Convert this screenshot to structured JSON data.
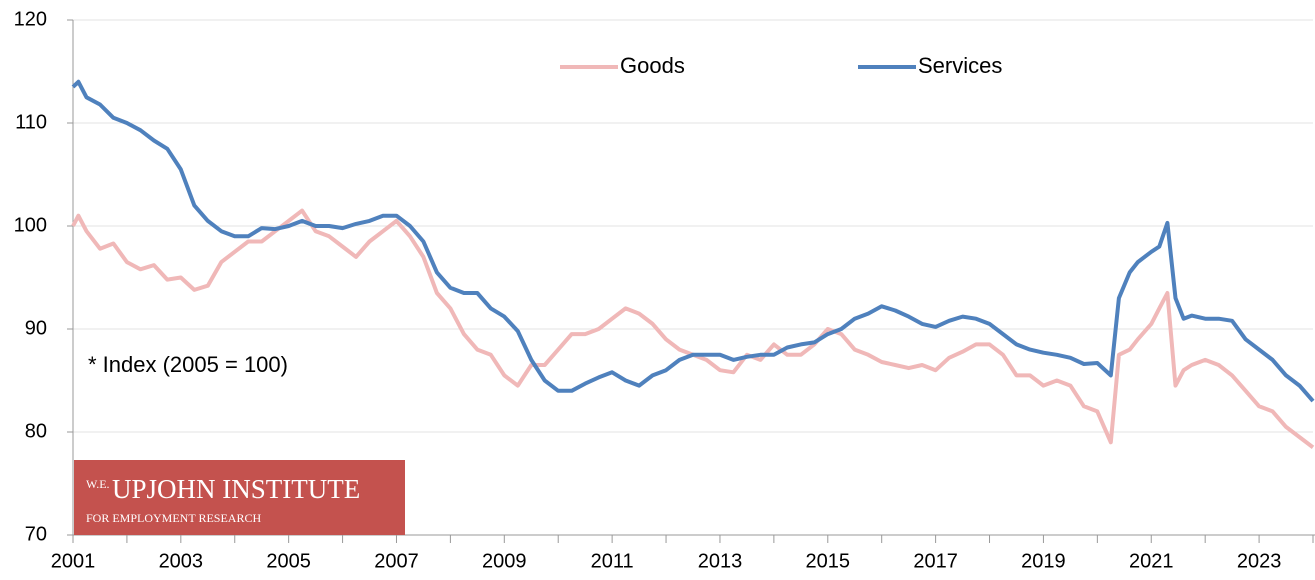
{
  "chart_data": {
    "type": "line",
    "annotation": "* Index (2005 = 100)",
    "logo": {
      "title": "UPJOHN INSTITUTE",
      "prefix": "W.E.",
      "subtitle": "FOR EMPLOYMENT RESEARCH"
    },
    "x": [
      2001.0,
      2001.1,
      2001.25,
      2001.5,
      2001.75,
      2002.0,
      2002.25,
      2002.5,
      2002.75,
      2003.0,
      2003.25,
      2003.5,
      2003.75,
      2004.0,
      2004.25,
      2004.5,
      2004.75,
      2005.0,
      2005.25,
      2005.5,
      2005.75,
      2006.0,
      2006.25,
      2006.5,
      2006.75,
      2007.0,
      2007.25,
      2007.5,
      2007.75,
      2008.0,
      2008.25,
      2008.5,
      2008.75,
      2009.0,
      2009.25,
      2009.5,
      2009.75,
      2010.0,
      2010.25,
      2010.5,
      2010.75,
      2011.0,
      2011.25,
      2011.5,
      2011.75,
      2012.0,
      2012.25,
      2012.5,
      2012.75,
      2013.0,
      2013.25,
      2013.5,
      2013.75,
      2014.0,
      2014.25,
      2014.5,
      2014.75,
      2015.0,
      2015.25,
      2015.5,
      2015.75,
      2016.0,
      2016.25,
      2016.5,
      2016.75,
      2017.0,
      2017.25,
      2017.5,
      2017.75,
      2018.0,
      2018.25,
      2018.5,
      2018.75,
      2019.0,
      2019.25,
      2019.5,
      2019.75,
      2020.0,
      2020.25,
      2020.4,
      2020.6,
      2020.75,
      2021.0,
      2021.15,
      2021.3,
      2021.45,
      2021.6,
      2021.75,
      2022.0,
      2022.25,
      2022.5,
      2022.75,
      2023.0,
      2023.25,
      2023.5,
      2023.75,
      2024.0
    ],
    "series": [
      {
        "name": "Goods",
        "color": "#f0b8b8",
        "values": [
          100,
          101,
          99.5,
          97.8,
          98.3,
          96.5,
          95.8,
          96.2,
          94.8,
          95,
          93.8,
          94.2,
          96.5,
          97.5,
          98.5,
          98.5,
          99.5,
          100.5,
          101.5,
          99.5,
          99,
          98,
          97,
          98.5,
          99.5,
          100.5,
          99,
          97,
          93.5,
          92,
          89.5,
          88,
          87.5,
          85.5,
          84.5,
          86.5,
          86.5,
          88,
          89.5,
          89.5,
          90,
          91,
          92,
          91.5,
          90.5,
          89,
          88,
          87.5,
          87,
          86,
          85.8,
          87.5,
          87,
          88.5,
          87.5,
          87.5,
          88.5,
          90,
          89.5,
          88,
          87.5,
          86.8,
          86.5,
          86.2,
          86.5,
          86,
          87.2,
          87.8,
          88.5,
          88.5,
          87.5,
          85.5,
          85.5,
          84.5,
          85,
          84.5,
          82.5,
          82,
          79,
          87.5,
          88,
          89,
          90.5,
          92,
          93.5,
          84.5,
          86,
          86.5,
          87,
          86.5,
          85.5,
          84,
          82.5,
          82,
          80.5,
          79.5,
          78.5
        ]
      },
      {
        "name": "Services",
        "color": "#4f81bd",
        "values": [
          113.5,
          114,
          112.5,
          111.8,
          110.5,
          110,
          109.3,
          108.3,
          107.5,
          105.5,
          102,
          100.5,
          99.5,
          99,
          99,
          99.8,
          99.7,
          100,
          100.5,
          100,
          100,
          99.8,
          100.2,
          100.5,
          101,
          101,
          100,
          98.5,
          95.5,
          94,
          93.5,
          93.5,
          92,
          91.2,
          89.8,
          87,
          85,
          84,
          84,
          84.7,
          85.3,
          85.8,
          85,
          84.5,
          85.5,
          86,
          87,
          87.5,
          87.5,
          87.5,
          87,
          87.3,
          87.5,
          87.5,
          88.2,
          88.5,
          88.7,
          89.5,
          90,
          91,
          91.5,
          92.2,
          91.8,
          91.2,
          90.5,
          90.2,
          90.8,
          91.2,
          91,
          90.5,
          89.5,
          88.5,
          88,
          87.7,
          87.5,
          87.2,
          86.6,
          86.7,
          85.5,
          93,
          95.5,
          96.5,
          97.5,
          98,
          100.3,
          93,
          91,
          91.3,
          91,
          91,
          90.8,
          89,
          88,
          87,
          85.5,
          84.5,
          83
        ]
      }
    ],
    "xlim": [
      2001,
      2024
    ],
    "xticks": [
      2001,
      2003,
      2005,
      2007,
      2009,
      2011,
      2013,
      2015,
      2017,
      2019,
      2021,
      2023
    ],
    "xminorticks": [
      2002,
      2004,
      2006,
      2008,
      2010,
      2012,
      2014,
      2016,
      2018,
      2020,
      2022,
      2024
    ],
    "ylim": [
      70,
      120
    ],
    "yticks": [
      70,
      80,
      90,
      100,
      110,
      120
    ],
    "grid": true,
    "legend": "top",
    "line_width": 4
  }
}
